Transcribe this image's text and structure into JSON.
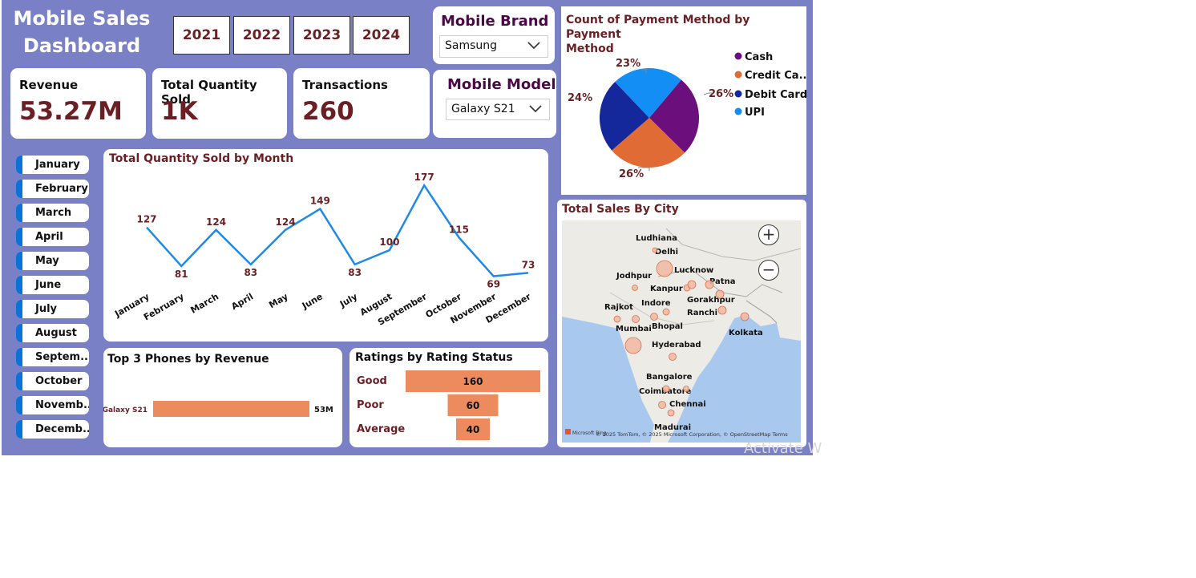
{
  "dashboard": {
    "title_line1": "Mobile Sales",
    "title_line2": "Dashboard"
  },
  "years": [
    "2021",
    "2022",
    "2023",
    "2024"
  ],
  "brand_slicer": {
    "title": "Mobile Brand",
    "value": "Samsung"
  },
  "model_slicer": {
    "title": "Mobile Model",
    "value": "Galaxy S21"
  },
  "kpis": {
    "revenue": {
      "label": "Revenue",
      "value": "53.27M"
    },
    "quantity": {
      "label": "Total Quantity Sold",
      "value": "1K"
    },
    "transactions": {
      "label": "Transactions",
      "value": "260"
    }
  },
  "months": [
    "January",
    "February",
    "March",
    "April",
    "May",
    "June",
    "July",
    "August",
    "Septem...",
    "October",
    "Novemb...",
    "Decemb..."
  ],
  "pie": {
    "title": "Count of Payment Method by Payment Method",
    "title_line1": "Count of Payment Method by Payment",
    "title_line2": "Method",
    "legend": [
      "Cash",
      "Credit Ca...",
      "Debit Card",
      "UPI"
    ],
    "labels": {
      "cash": "26%",
      "credit": "26%",
      "debit": "24%",
      "upi": "23%"
    }
  },
  "map": {
    "title": "Total Sales By City",
    "cities": [
      "Ludhiana",
      "Delhi",
      "Lucknow",
      "Jodhpur",
      "Kanpur",
      "Patna",
      "Gorakhpur",
      "Indore",
      "Rajkot",
      "Ranchi",
      "Bhopal",
      "Mumbai",
      "Kolkata",
      "Hyderabad",
      "Bangalore",
      "Coimbatore",
      "Chennai",
      "Madurai"
    ],
    "attribution": "© 2025 TomTom, © 2025 Microsoft Corporation, © OpenStreetMap  Terms",
    "logo": "Microsoft Bing",
    "zoom_in": "+",
    "zoom_out": "−"
  },
  "top_phones": {
    "title": "Top 3 Phones by Revenue"
  },
  "ratings": {
    "title": "Ratings by Rating Status"
  },
  "watermark": "Activate W",
  "colors": {
    "background": "#7a80c6",
    "accent": "#6a1f24",
    "line": "#1e8ae6",
    "bar": "#ec8b5e"
  },
  "chart_data": [
    {
      "type": "line",
      "title": "Total Quantity Sold by Month",
      "categories": [
        "January",
        "February",
        "March",
        "April",
        "May",
        "June",
        "July",
        "August",
        "September",
        "October",
        "November",
        "December"
      ],
      "values": [
        127,
        81,
        124,
        83,
        124,
        149,
        83,
        100,
        177,
        115,
        69,
        73
      ]
    },
    {
      "type": "pie",
      "title": "Count of Payment Method by Payment Method",
      "categories": [
        "Cash",
        "Credit Card",
        "Debit Card",
        "UPI"
      ],
      "values": [
        26,
        26,
        24,
        23
      ],
      "unit": "%",
      "colors": [
        "#6b0f7c",
        "#e06b35",
        "#14289c",
        "#128ef5"
      ],
      "legend": "right"
    },
    {
      "type": "bar",
      "title": "Top 3 Phones by Revenue",
      "categories": [
        "Galaxy S21"
      ],
      "values": [
        53
      ],
      "value_labels": [
        "53M"
      ],
      "unit": "M"
    },
    {
      "type": "bar",
      "title": "Ratings by Rating Status",
      "categories": [
        "Good",
        "Poor",
        "Average"
      ],
      "values": [
        160,
        60,
        40
      ],
      "value_labels": [
        "160",
        "60",
        "40"
      ]
    }
  ]
}
